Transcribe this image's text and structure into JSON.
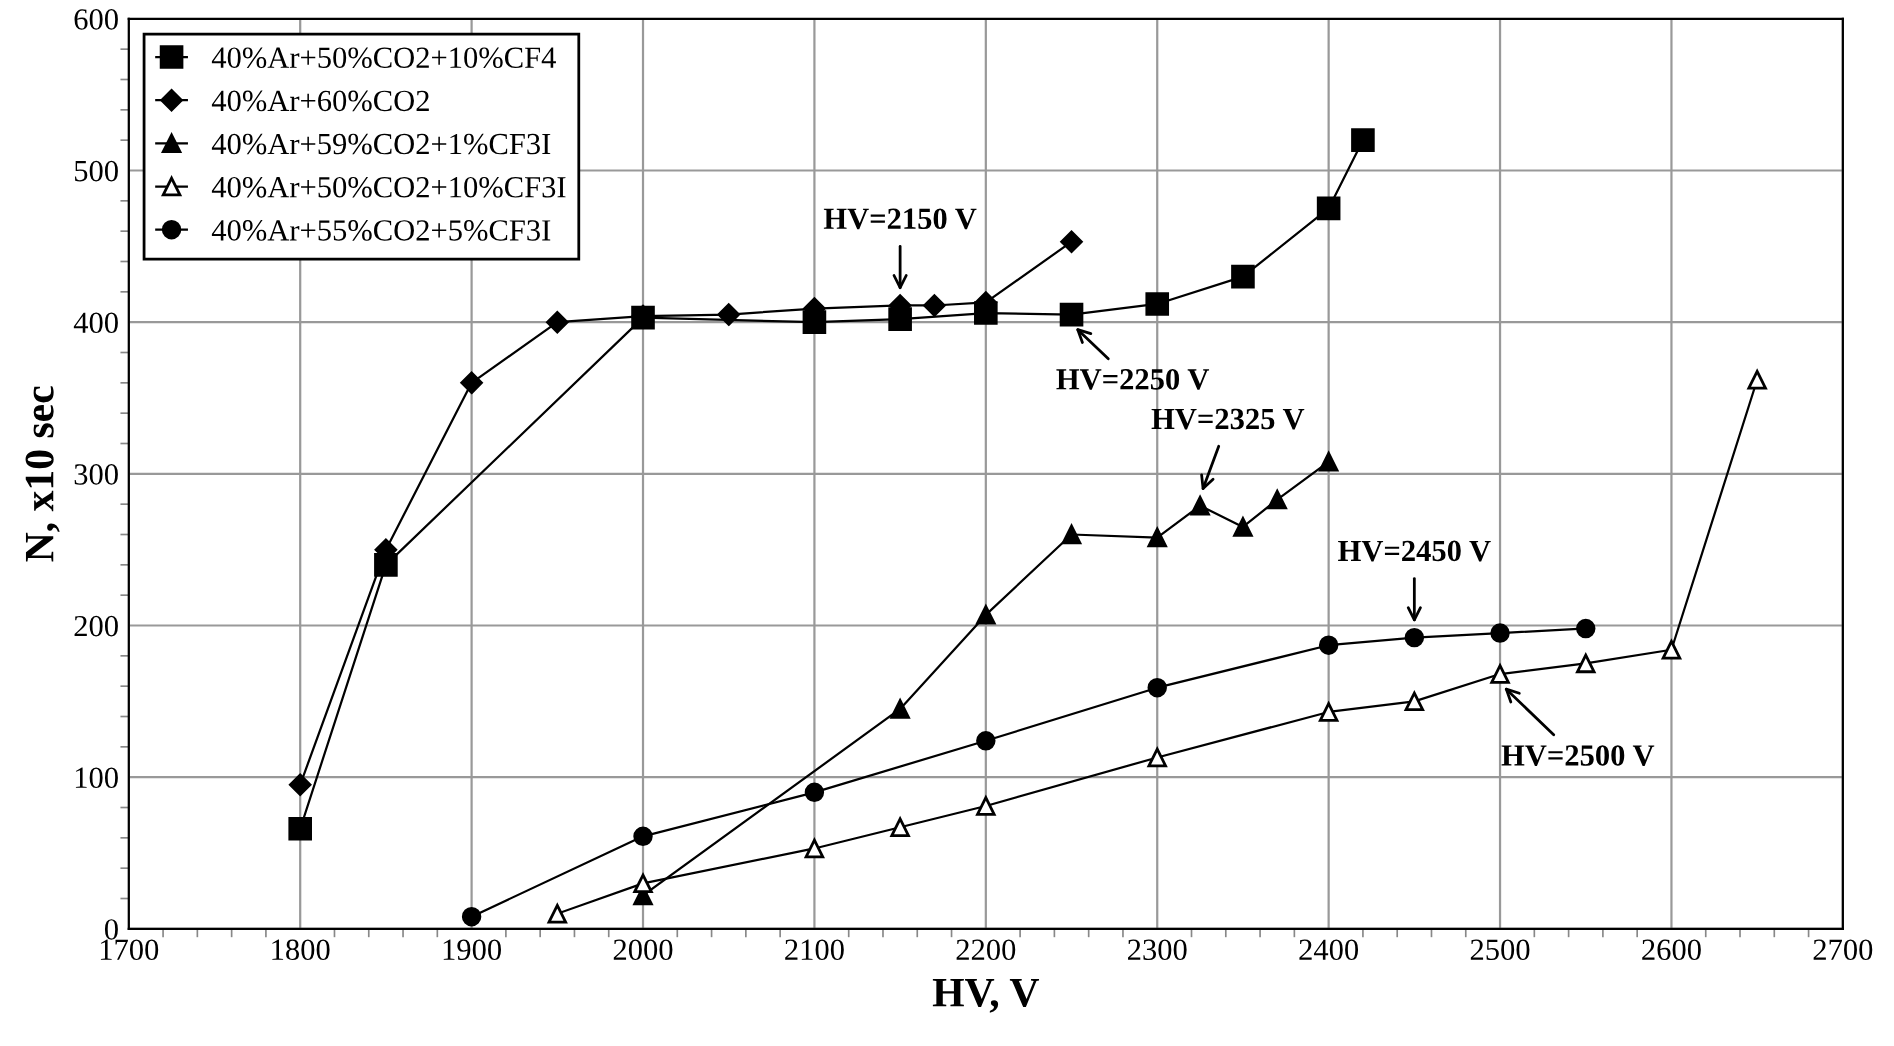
{
  "chart_data": {
    "type": "line",
    "xlabel": "HV, V",
    "ylabel": "N, x10 sec",
    "xlim": [
      1700,
      2700
    ],
    "xticks": [
      1700,
      1800,
      1900,
      2000,
      2100,
      2200,
      2300,
      2400,
      2500,
      2600,
      2700
    ],
    "ylim": [
      0,
      600
    ],
    "yticks": [
      0,
      100,
      200,
      300,
      400,
      500,
      600
    ],
    "grid": true,
    "legend": "top left",
    "line_style": "solid",
    "series": [
      {
        "name": "40%Ar+50%CO2+10%CF4",
        "color": "#000000",
        "marker": "square",
        "x": [
          1800,
          1850,
          2000,
          2100,
          2150,
          2200,
          2250,
          2300,
          2350,
          2400,
          2420
        ],
        "values": [
          66,
          240,
          403,
          400,
          402,
          406,
          405,
          412,
          430,
          475,
          520
        ]
      },
      {
        "name": "40%Ar+60%CO2",
        "color": "#000000",
        "marker": "diamond",
        "x": [
          1800,
          1850,
          1900,
          1950,
          2000,
          2050,
          2100,
          2150,
          2170,
          2200,
          2250
        ],
        "values": [
          95,
          250,
          360,
          400,
          404,
          405,
          409,
          411,
          411,
          413,
          453
        ]
      },
      {
        "name": "40%Ar+59%CO2+1%CF3I",
        "color": "#000000",
        "marker": "triangle",
        "x": [
          2000,
          2150,
          2200,
          2250,
          2300,
          2325,
          2350,
          2370,
          2400
        ],
        "values": [
          22,
          145,
          207,
          260,
          258,
          279,
          265,
          283,
          308
        ]
      },
      {
        "name": "40%Ar+50%CO2+10%CF3I",
        "color": "#ffffff",
        "marker": "triangle",
        "x": [
          1950,
          2000,
          2100,
          2150,
          2200,
          2300,
          2400,
          2450,
          2500,
          2550,
          2600,
          2650
        ],
        "values": [
          10,
          30,
          53,
          67,
          81,
          113,
          143,
          150,
          168,
          175,
          184,
          362
        ]
      },
      {
        "name": "40%Ar+55%CO2+5%CF3I",
        "color": "#000000",
        "marker": "circle",
        "x": [
          1900,
          2000,
          2100,
          2200,
          2300,
          2400,
          2450,
          2500,
          2550
        ],
        "values": [
          8,
          61,
          90,
          124,
          159,
          187,
          192,
          195,
          198
        ]
      }
    ],
    "annotations": [
      {
        "text": "HV=2150 V",
        "x": 2150,
        "y": 411
      },
      {
        "text": "HV=2250 V",
        "x": 2250,
        "y": 405
      },
      {
        "text": "HV=2325 V",
        "x": 2325,
        "y": 279
      },
      {
        "text": "HV=2450 V",
        "x": 2450,
        "y": 192
      },
      {
        "text": "HV=2500 V",
        "x": 2500,
        "y": 168
      }
    ]
  }
}
